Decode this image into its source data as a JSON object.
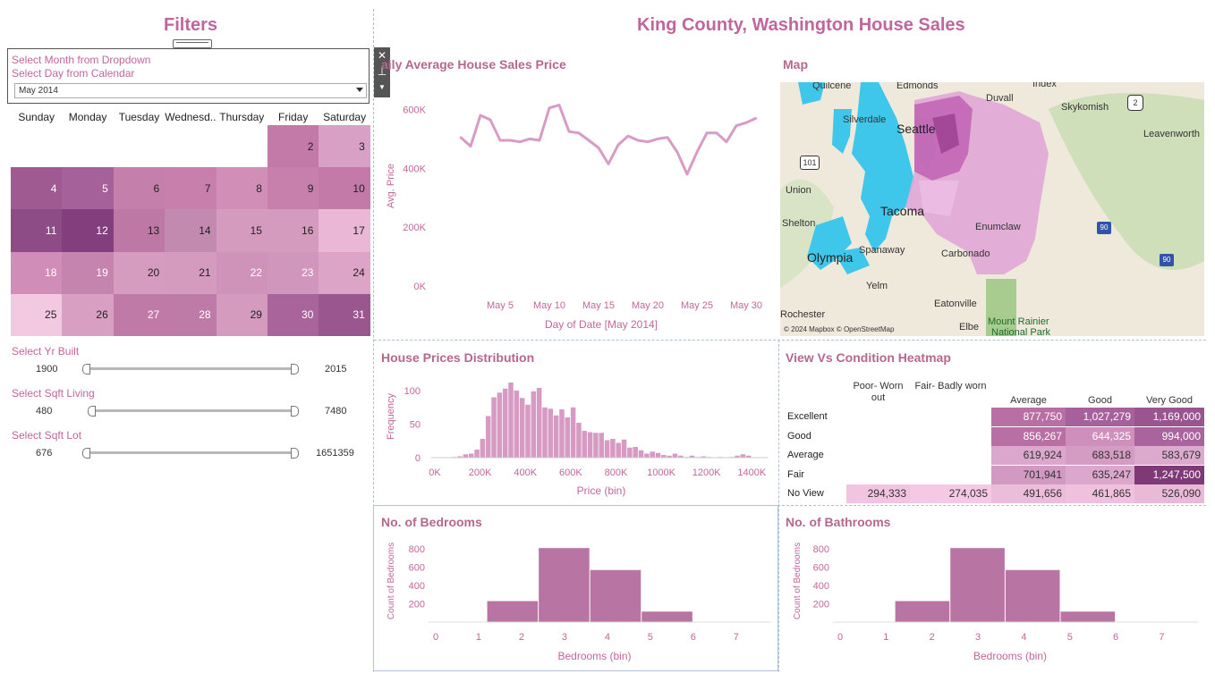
{
  "filters": {
    "title": "Filters",
    "select_month_label": "Select Month from Dropdown",
    "select_day_label": "Select Day from Calendar",
    "month_value": "May 2014",
    "calendar": {
      "days_of_week": [
        "Sunday",
        "Monday",
        "Tuesday",
        "Wednesd..",
        "Thursday",
        "Friday",
        "Saturday"
      ],
      "cells": [
        {
          "day": "2",
          "color": "#c37aa8"
        },
        {
          "day": "3",
          "color": "#d7a0c4"
        },
        {
          "day": "4",
          "color": "#9e5a91"
        },
        {
          "day": "5",
          "color": "#a4619a"
        },
        {
          "day": "6",
          "color": "#c57fab"
        },
        {
          "day": "7",
          "color": "#c87fac"
        },
        {
          "day": "8",
          "color": "#d18fb8"
        },
        {
          "day": "9",
          "color": "#c77fab"
        },
        {
          "day": "10",
          "color": "#c37aa8"
        },
        {
          "day": "11",
          "color": "#8d4c86"
        },
        {
          "day": "12",
          "color": "#833f7d"
        },
        {
          "day": "13",
          "color": "#bd78a6"
        },
        {
          "day": "14",
          "color": "#c38aaf"
        },
        {
          "day": "15",
          "color": "#d49bbf"
        },
        {
          "day": "16",
          "color": "#d49bbf"
        },
        {
          "day": "17",
          "color": "#eab7d6"
        },
        {
          "day": "18",
          "color": "#cf8db7"
        },
        {
          "day": "19",
          "color": "#c584ae"
        },
        {
          "day": "20",
          "color": "#d59cc0"
        },
        {
          "day": "21",
          "color": "#d49bbf"
        },
        {
          "day": "22",
          "color": "#cf93ba"
        },
        {
          "day": "23",
          "color": "#d196bb"
        },
        {
          "day": "24",
          "color": "#dca5c7"
        },
        {
          "day": "25",
          "color": "#f3c9e2"
        },
        {
          "day": "26",
          "color": "#d89fc3"
        },
        {
          "day": "27",
          "color": "#c07aa8"
        },
        {
          "day": "28",
          "color": "#bf7ba7"
        },
        {
          "day": "29",
          "color": "#d49bbf"
        },
        {
          "day": "30",
          "color": "#a9649b"
        },
        {
          "day": "31",
          "color": "#9a568f"
        }
      ]
    },
    "sliders": [
      {
        "label": "Select Yr Built",
        "min": "1900",
        "max": "2015"
      },
      {
        "label": "Select Sqft Living",
        "min": "480",
        "max": "7480"
      },
      {
        "label": "Select Sqft Lot",
        "min": "676",
        "max": "1651359"
      }
    ]
  },
  "dashboard_title": "King County, Washington House Sales",
  "line_chart_title": "aily Average House Sales Price",
  "map_title": "Map",
  "histogram_title": "House Prices Distribution",
  "heatmap_title": "View Vs Condition Heatmap",
  "bedrooms_title": "No. of Bedrooms",
  "bathrooms_title": "No. of Bathrooms",
  "map": {
    "labels": [
      "Quilcene",
      "Edmonds",
      "Index",
      "Duvall",
      "Silverdale",
      "Skykomish",
      "Seattle",
      "Leavenworth",
      "Union",
      "Tacoma",
      "Shelton",
      "Enumclaw",
      "Olympia",
      "Spanaway",
      "Carbonado",
      "Yelm",
      "Eatonville",
      "Rochester",
      "Elbe",
      "Mount Rainier",
      "National Park"
    ],
    "attribution": "© 2024 Mapbox © OpenStreetMap",
    "route_101": "101",
    "route_2": "2",
    "route_90a": "90",
    "route_90b": "90"
  },
  "chart_data": [
    {
      "type": "line",
      "title": "aily Average House Sales Price",
      "xlabel": "Day of Date [May 2014]",
      "ylabel": "Avg. Price",
      "x": [
        1,
        2,
        3,
        4,
        5,
        6,
        7,
        8,
        9,
        10,
        11,
        12,
        13,
        14,
        15,
        16,
        17,
        18,
        19,
        20,
        21,
        22,
        23,
        24,
        25,
        26,
        27,
        28,
        29,
        30,
        31
      ],
      "values": [
        505000,
        475000,
        580000,
        565000,
        495000,
        495000,
        490000,
        500000,
        495000,
        605000,
        615000,
        525000,
        520000,
        495000,
        470000,
        415000,
        480000,
        510000,
        495000,
        490000,
        500000,
        505000,
        455000,
        380000,
        455000,
        520000,
        520000,
        490000,
        545000,
        555000,
        570000
      ],
      "x_ticks": [
        "May 5",
        "May 10",
        "May 15",
        "May 20",
        "May 25",
        "May 30"
      ],
      "x_tick_values": [
        5,
        10,
        15,
        20,
        25,
        30
      ],
      "y_ticks": [
        "0K",
        "200K",
        "400K",
        "600K"
      ],
      "y_tick_values": [
        0,
        200000,
        400000,
        600000
      ],
      "ylim": [
        0,
        650000
      ],
      "xlim": [
        0,
        32
      ],
      "color": "#d89bc6"
    },
    {
      "type": "bar",
      "title": "House Prices Distribution",
      "xlabel": "Price (bin)",
      "ylabel": "Frequency",
      "bin_width": 25000,
      "bin_starts": [
        75000,
        100000,
        125000,
        150000,
        175000,
        200000,
        225000,
        250000,
        275000,
        300000,
        325000,
        350000,
        375000,
        400000,
        425000,
        450000,
        475000,
        500000,
        525000,
        550000,
        575000,
        600000,
        625000,
        650000,
        675000,
        700000,
        725000,
        750000,
        775000,
        800000,
        825000,
        850000,
        875000,
        900000,
        925000,
        950000,
        975000,
        1000000,
        1025000,
        1050000,
        1075000,
        1100000,
        1125000,
        1150000,
        1175000,
        1200000,
        1225000,
        1250000,
        1275000,
        1300000,
        1325000,
        1350000,
        1375000,
        1400000
      ],
      "values": [
        1,
        2,
        5,
        6,
        12,
        28,
        62,
        90,
        97,
        103,
        112,
        100,
        89,
        79,
        99,
        104,
        75,
        73,
        63,
        72,
        60,
        75,
        52,
        40,
        38,
        37,
        37,
        26,
        28,
        22,
        27,
        15,
        16,
        11,
        6,
        9,
        7,
        4,
        3,
        6,
        3,
        1,
        3,
        1,
        2,
        1,
        0,
        1,
        0,
        1,
        3,
        5,
        3,
        0
      ],
      "x_ticks": [
        "0K",
        "200K",
        "400K",
        "600K",
        "800K",
        "1000K",
        "1200K",
        "1400K"
      ],
      "x_tick_values": [
        0,
        200000,
        400000,
        600000,
        800000,
        1000000,
        1200000,
        1400000
      ],
      "y_ticks": [
        "0",
        "50",
        "100"
      ],
      "y_tick_values": [
        0,
        50,
        100
      ],
      "xlim": [
        0,
        1470000
      ],
      "ylim": [
        0,
        120
      ],
      "color": "#d69ac3"
    },
    {
      "type": "table",
      "title": "View Vs Condition Heatmap",
      "columns": [
        "Poor- Worn out",
        "Fair- Badly worn",
        "Average",
        "Good",
        "Very Good"
      ],
      "rows": [
        {
          "name": "Excellent",
          "values": [
            "",
            "",
            "877,750",
            "1,027,279",
            "1,169,000"
          ]
        },
        {
          "name": "Good",
          "values": [
            "",
            "",
            "856,267",
            "644,325",
            "994,000"
          ]
        },
        {
          "name": "Average",
          "values": [
            "",
            "",
            "619,924",
            "683,518",
            "583,679"
          ]
        },
        {
          "name": "Fair",
          "values": [
            "",
            "",
            "701,941",
            "635,247",
            "1,247,500"
          ]
        },
        {
          "name": "No View",
          "values": [
            "294,333",
            "274,035",
            "491,656",
            "461,865",
            "526,090"
          ]
        }
      ],
      "colors": [
        [
          "",
          "",
          "#b86fa3",
          "#a6609b",
          "#9a5591"
        ],
        [
          "",
          "",
          "#b86fa3",
          "#cf8fbd",
          "#a9639d"
        ],
        [
          "",
          "",
          "#dba7cc",
          "#d49bc3",
          "#dcaacd"
        ],
        [
          "",
          "",
          "#d29ac2",
          "#dba7cc",
          "#7d3a76"
        ],
        [
          "#f3c4e0",
          "#f5c9e3",
          "#ecbcdb",
          "#efc1de",
          "#eab9d8"
        ]
      ]
    },
    {
      "type": "bar",
      "title": "No. of Bedrooms",
      "xlabel": "Bedrooms (bin)",
      "ylabel": "Count of Bedrooms",
      "bin_starts": [
        1.2,
        2.4,
        3.6,
        4.8
      ],
      "bin_width": 1.2,
      "values": [
        230,
        810,
        570,
        115
      ],
      "x_ticks": [
        "0",
        "1",
        "2",
        "3",
        "4",
        "5",
        "6",
        "7"
      ],
      "x_tick_values": [
        0,
        1,
        2,
        3,
        4,
        5,
        6,
        7
      ],
      "y_ticks": [
        "200",
        "400",
        "600",
        "800"
      ],
      "y_tick_values": [
        200,
        400,
        600,
        800
      ],
      "xlim": [
        0,
        7.4
      ],
      "ylim": [
        0,
        880
      ],
      "color": "#b874a3"
    },
    {
      "type": "bar",
      "title": "No. of Bathrooms",
      "xlabel": "Bedrooms (bin)",
      "ylabel": "Count of Bedrooms",
      "bin_starts": [
        1.2,
        2.4,
        3.6,
        4.8
      ],
      "bin_width": 1.2,
      "values": [
        230,
        810,
        570,
        115
      ],
      "x_ticks": [
        "0",
        "1",
        "2",
        "3",
        "4",
        "5",
        "6",
        "7"
      ],
      "x_tick_values": [
        0,
        1,
        2,
        3,
        4,
        5,
        6,
        7
      ],
      "y_ticks": [
        "200",
        "400",
        "600",
        "800"
      ],
      "y_tick_values": [
        200,
        400,
        600,
        800
      ],
      "xlim": [
        0,
        7.4
      ],
      "ylim": [
        0,
        880
      ],
      "color": "#b874a3"
    }
  ]
}
